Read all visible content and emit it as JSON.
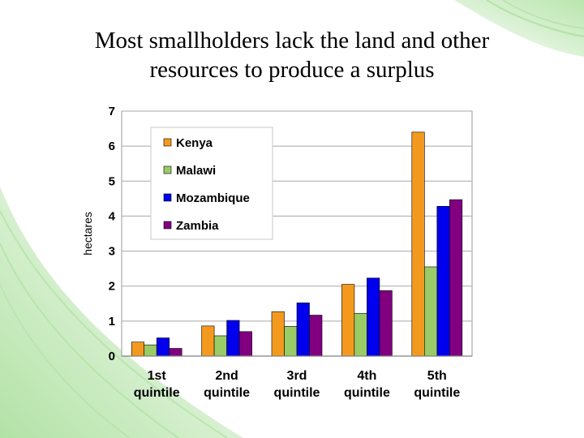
{
  "slide": {
    "title_line1": "Most smallholders lack the land and other",
    "title_line2": "resources to produce a surplus"
  },
  "colors": {
    "accent_green": "#7fcf6a",
    "Kenya": "#f39a1e",
    "Malawi": "#99cc66",
    "Mozambique": "#0000ee",
    "Zambia": "#800080"
  },
  "chart_data": {
    "type": "bar",
    "title": "",
    "xlabel": "",
    "ylabel": "hectares",
    "ylim": [
      0,
      7
    ],
    "yticks": [
      "0",
      "1",
      "2",
      "3",
      "4",
      "5",
      "6",
      "7"
    ],
    "grid": true,
    "legend_position": "top-left",
    "categories": [
      [
        "1st",
        "quintile"
      ],
      [
        "2nd",
        "quintile"
      ],
      [
        "3rd",
        "quintile"
      ],
      [
        "4th",
        "quintile"
      ],
      [
        "5th",
        "quintile"
      ]
    ],
    "series": [
      {
        "name": "Kenya",
        "values": [
          0.4,
          0.86,
          1.27,
          2.05,
          6.4
        ]
      },
      {
        "name": "Malawi",
        "values": [
          0.32,
          0.58,
          0.85,
          1.22,
          2.55
        ]
      },
      {
        "name": "Mozambique",
        "values": [
          0.52,
          1.02,
          1.52,
          2.23,
          4.28
        ]
      },
      {
        "name": "Zambia",
        "values": [
          0.22,
          0.7,
          1.17,
          1.87,
          4.47
        ]
      }
    ]
  }
}
